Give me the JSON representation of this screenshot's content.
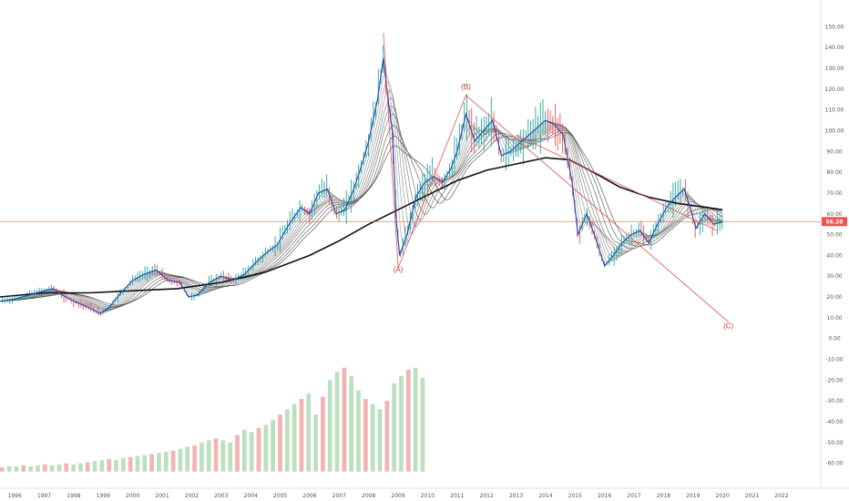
{
  "chart_data": {
    "type": "candlestick",
    "title": "",
    "xlabel": "",
    "ylabel": "",
    "ylim": [
      -65,
      155
    ],
    "xlim": [
      1995.5,
      2023.3
    ],
    "grid": false,
    "y_ticks": [
      "150.00",
      "140.00",
      "130.00",
      "120.00",
      "110.00",
      "100.00",
      "90.00",
      "80.00",
      "70.00",
      "60.00",
      "50.00",
      "40.00",
      "30.00",
      "20.00",
      "10.00",
      "0.00",
      "-10.00",
      "-20.00",
      "-30.00",
      "-40.00",
      "-50.00",
      "-60.00"
    ],
    "y_tick_values": [
      150,
      140,
      130,
      120,
      110,
      100,
      90,
      80,
      70,
      60,
      50,
      40,
      30,
      20,
      10,
      0,
      -10,
      -20,
      -30,
      -40,
      -50,
      -60
    ],
    "x_ticks": [
      "1996",
      "1997",
      "1998",
      "1999",
      "2000",
      "2001",
      "2002",
      "2003",
      "2004",
      "2005",
      "2006",
      "2007",
      "2008",
      "2009",
      "2010",
      "2011",
      "2012",
      "2013",
      "2014",
      "2015",
      "2016",
      "2017",
      "2018",
      "2019",
      "2020",
      "2021",
      "2022"
    ],
    "current_price": {
      "label": "56.28",
      "value": 56.28,
      "color": "#ef5350"
    },
    "price_series": {
      "name": "",
      "points": [
        [
          1995.5,
          18
        ],
        [
          1996.0,
          19
        ],
        [
          1996.5,
          21
        ],
        [
          1997.0,
          23
        ],
        [
          1997.3,
          24
        ],
        [
          1997.6,
          21
        ],
        [
          1998.0,
          18
        ],
        [
          1998.5,
          15
        ],
        [
          1998.9,
          12
        ],
        [
          1999.2,
          15
        ],
        [
          1999.6,
          22
        ],
        [
          2000.0,
          28
        ],
        [
          2000.4,
          31
        ],
        [
          2000.8,
          33
        ],
        [
          2001.2,
          28
        ],
        [
          2001.6,
          27
        ],
        [
          2001.9,
          20
        ],
        [
          2002.2,
          21
        ],
        [
          2002.6,
          27
        ],
        [
          2003.0,
          30
        ],
        [
          2003.4,
          28
        ],
        [
          2003.8,
          31
        ],
        [
          2004.2,
          37
        ],
        [
          2004.6,
          42
        ],
        [
          2004.9,
          45
        ],
        [
          2005.3,
          55
        ],
        [
          2005.7,
          63
        ],
        [
          2006.0,
          60
        ],
        [
          2006.3,
          70
        ],
        [
          2006.6,
          72
        ],
        [
          2006.9,
          60
        ],
        [
          2007.2,
          62
        ],
        [
          2007.5,
          72
        ],
        [
          2007.8,
          85
        ],
        [
          2008.0,
          95
        ],
        [
          2008.3,
          115
        ],
        [
          2008.5,
          135
        ],
        [
          2008.6,
          122
        ],
        [
          2008.8,
          100
        ],
        [
          2008.95,
          55
        ],
        [
          2009.05,
          40
        ],
        [
          2009.3,
          50
        ],
        [
          2009.6,
          68
        ],
        [
          2009.9,
          75
        ],
        [
          2010.2,
          78
        ],
        [
          2010.5,
          75
        ],
        [
          2010.8,
          82
        ],
        [
          2011.0,
          90
        ],
        [
          2011.3,
          108
        ],
        [
          2011.6,
          95
        ],
        [
          2011.9,
          100
        ],
        [
          2012.2,
          105
        ],
        [
          2012.5,
          88
        ],
        [
          2012.8,
          90
        ],
        [
          2013.2,
          95
        ],
        [
          2013.6,
          100
        ],
        [
          2014.0,
          105
        ],
        [
          2014.3,
          103
        ],
        [
          2014.6,
          98
        ],
        [
          2014.9,
          75
        ],
        [
          2015.1,
          50
        ],
        [
          2015.4,
          60
        ],
        [
          2015.7,
          48
        ],
        [
          2016.0,
          35
        ],
        [
          2016.3,
          40
        ],
        [
          2016.6,
          46
        ],
        [
          2016.9,
          50
        ],
        [
          2017.2,
          52
        ],
        [
          2017.5,
          46
        ],
        [
          2017.8,
          55
        ],
        [
          2018.1,
          63
        ],
        [
          2018.4,
          68
        ],
        [
          2018.7,
          72
        ],
        [
          2018.9,
          63
        ],
        [
          2019.1,
          53
        ],
        [
          2019.4,
          60
        ],
        [
          2019.7,
          55
        ],
        [
          2020.0,
          56.28
        ]
      ]
    },
    "long_ma": {
      "name": "",
      "points": [
        [
          1995.5,
          20
        ],
        [
          1997,
          22
        ],
        [
          1998.5,
          22
        ],
        [
          2000,
          23
        ],
        [
          2001.5,
          24
        ],
        [
          2003,
          27
        ],
        [
          2004.5,
          32
        ],
        [
          2006,
          40
        ],
        [
          2007,
          47
        ],
        [
          2008,
          55
        ],
        [
          2009,
          62
        ],
        [
          2010,
          69
        ],
        [
          2011,
          76
        ],
        [
          2012,
          81
        ],
        [
          2013,
          84
        ],
        [
          2014,
          87
        ],
        [
          2014.8,
          86
        ],
        [
          2015.5,
          81
        ],
        [
          2016.5,
          73
        ],
        [
          2017.5,
          68
        ],
        [
          2018.5,
          65
        ],
        [
          2019.5,
          63
        ],
        [
          2020.0,
          62
        ]
      ]
    },
    "wave_labels": [
      {
        "text": "(A)",
        "x": 2009.0,
        "y": 32
      },
      {
        "text": "(B)",
        "x": 2011.3,
        "y": 120
      },
      {
        "text": "(C)",
        "x": 2020.2,
        "y": 5
      }
    ],
    "wave_lines": [
      [
        [
          2008.5,
          147
        ],
        [
          2009.0,
          34
        ],
        [
          2011.3,
          117
        ],
        [
          2020.2,
          8
        ]
      ],
      [
        [
          2013.0,
          98
        ],
        [
          2019.8,
          52
        ]
      ]
    ],
    "volume": {
      "x_start": 1995.5,
      "x_end": 2010.0,
      "values": [
        4,
        5,
        5,
        6,
        5,
        6,
        7,
        6,
        7,
        8,
        7,
        8,
        9,
        10,
        11,
        12,
        11,
        13,
        14,
        15,
        16,
        17,
        18,
        19,
        20,
        22,
        24,
        25,
        28,
        30,
        32,
        30,
        28,
        35,
        40,
        38,
        42,
        45,
        50,
        55,
        60,
        65,
        70,
        75,
        80,
        85,
        90,
        95,
        100,
        95,
        90,
        85,
        95,
        100,
        98,
        90,
        85,
        88,
        92,
        95
      ],
      "spike_values": [
        55,
        72,
        88,
        96,
        100,
        92,
        78,
        70,
        65,
        60,
        68,
        85,
        92,
        98,
        100,
        90
      ]
    },
    "colors": {
      "up": "#26a69a",
      "down": "#ef5350",
      "price_line": "#1f4fb4",
      "long_ma": "#111111",
      "ribbon": "#999999",
      "wave": "#e05555",
      "volume_up": "#a5d6a7",
      "volume_down": "#ef9a9a"
    }
  }
}
